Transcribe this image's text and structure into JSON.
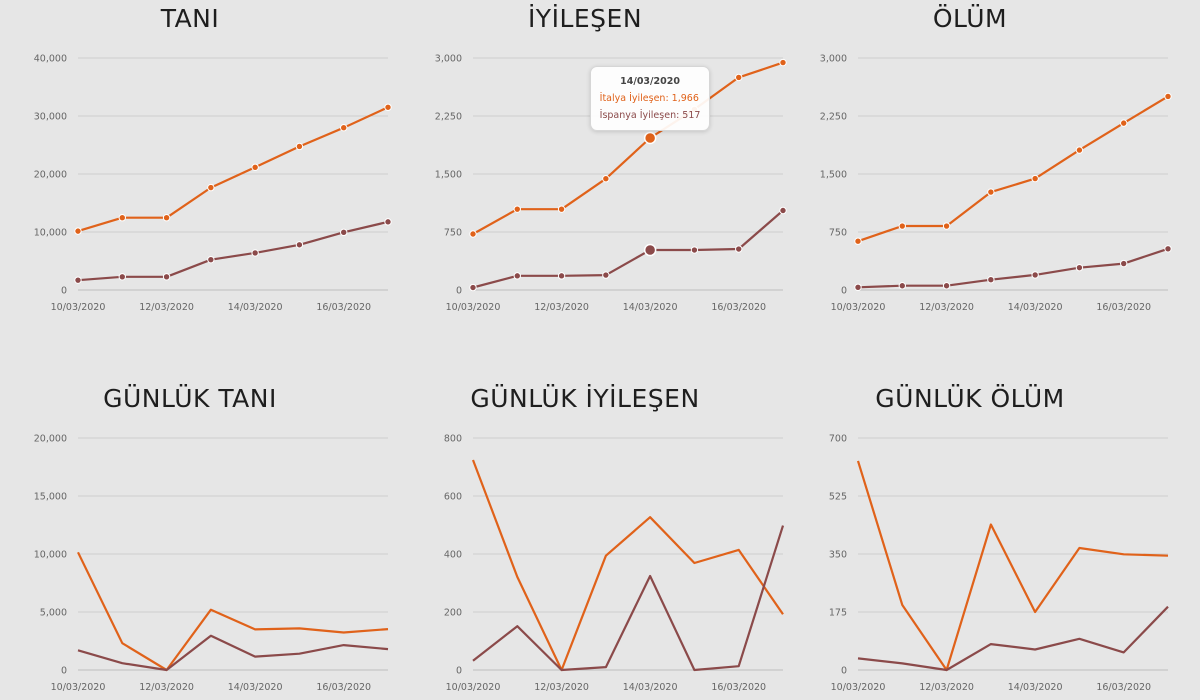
{
  "colors": {
    "italy": "#e0621a",
    "spain": "#8b4a4a"
  },
  "chart_data": [
    {
      "type": "line",
      "title": "TANI",
      "markers": true,
      "categories": [
        "10/03/2020",
        "11/03/2020",
        "12/03/2020",
        "13/03/2020",
        "14/03/2020",
        "15/03/2020",
        "16/03/2020",
        "17/03/2020"
      ],
      "x_tick_labels": [
        "10/03/2020",
        "12/03/2020",
        "14/03/2020",
        "16/03/2020"
      ],
      "ylim": [
        0,
        40000
      ],
      "y_ticks": [
        {
          "v": 0,
          "label": "0"
        },
        {
          "v": 10000,
          "label": "10,000"
        },
        {
          "v": 20000,
          "label": "20,000"
        },
        {
          "v": 30000,
          "label": "30,000"
        },
        {
          "v": 40000,
          "label": "40,000"
        }
      ],
      "series": [
        {
          "key": "italy",
          "values": [
            10149,
            12462,
            12462,
            17660,
            21157,
            24747,
            27980,
            31506
          ]
        },
        {
          "key": "spain",
          "values": [
            1695,
            2277,
            2277,
            5232,
            6391,
            7798,
            9942,
            11748
          ]
        }
      ]
    },
    {
      "type": "line",
      "title": "İYİLEŞEN",
      "markers": true,
      "categories": [
        "10/03/2020",
        "11/03/2020",
        "12/03/2020",
        "13/03/2020",
        "14/03/2020",
        "15/03/2020",
        "16/03/2020",
        "17/03/2020"
      ],
      "x_tick_labels": [
        "10/03/2020",
        "12/03/2020",
        "14/03/2020",
        "16/03/2020"
      ],
      "ylim": [
        0,
        3000
      ],
      "y_ticks": [
        {
          "v": 0,
          "label": "0"
        },
        {
          "v": 750,
          "label": "750"
        },
        {
          "v": 1500,
          "label": "1,500"
        },
        {
          "v": 2250,
          "label": "2,250"
        },
        {
          "v": 3000,
          "label": "3,000"
        }
      ],
      "series": [
        {
          "key": "italy",
          "values": [
            724,
            1045,
            1045,
            1439,
            1966,
            2335,
            2749,
            2941
          ]
        },
        {
          "key": "spain",
          "values": [
            32,
            183,
            183,
            193,
            517,
            517,
            530,
            1028
          ]
        }
      ],
      "tooltip": {
        "index": 4,
        "date": "14/03/2020",
        "lines": [
          {
            "key": "italy",
            "text": "İtalya İyileşen: 1,966"
          },
          {
            "key": "spain",
            "text": "İspanya İyileşen: 517"
          }
        ]
      }
    },
    {
      "type": "line",
      "title": "ÖLÜM",
      "markers": true,
      "categories": [
        "10/03/2020",
        "11/03/2020",
        "12/03/2020",
        "13/03/2020",
        "14/03/2020",
        "15/03/2020",
        "16/03/2020",
        "17/03/2020"
      ],
      "x_tick_labels": [
        "10/03/2020",
        "12/03/2020",
        "14/03/2020",
        "16/03/2020"
      ],
      "ylim": [
        0,
        3000
      ],
      "y_ticks": [
        {
          "v": 0,
          "label": "0"
        },
        {
          "v": 750,
          "label": "750"
        },
        {
          "v": 1500,
          "label": "1,500"
        },
        {
          "v": 2250,
          "label": "2,250"
        },
        {
          "v": 3000,
          "label": "3,000"
        }
      ],
      "series": [
        {
          "key": "italy",
          "values": [
            631,
            827,
            827,
            1266,
            1441,
            1809,
            2158,
            2503
          ]
        },
        {
          "key": "spain",
          "values": [
            35,
            55,
            55,
            133,
            195,
            289,
            342,
            533
          ]
        }
      ]
    },
    {
      "type": "line",
      "title": "GÜNLÜK TANI",
      "markers": false,
      "categories": [
        "10/03/2020",
        "11/03/2020",
        "12/03/2020",
        "13/03/2020",
        "14/03/2020",
        "15/03/2020",
        "16/03/2020",
        "17/03/2020"
      ],
      "x_tick_labels": [
        "10/03/2020",
        "12/03/2020",
        "14/03/2020",
        "16/03/2020"
      ],
      "ylim": [
        0,
        20000
      ],
      "y_ticks": [
        {
          "v": 0,
          "label": "0"
        },
        {
          "v": 5000,
          "label": "5,000"
        },
        {
          "v": 10000,
          "label": "10,000"
        },
        {
          "v": 15000,
          "label": "15,000"
        },
        {
          "v": 20000,
          "label": "20,000"
        }
      ],
      "series": [
        {
          "key": "italy",
          "values": [
            10149,
            2313,
            0,
            5198,
            3497,
            3590,
            3233,
            3526
          ]
        },
        {
          "key": "spain",
          "values": [
            1695,
            582,
            0,
            2955,
            1159,
            1407,
            2144,
            1806
          ]
        }
      ]
    },
    {
      "type": "line",
      "title": "GÜNLÜK İYİLEŞEN",
      "markers": false,
      "categories": [
        "10/03/2020",
        "11/03/2020",
        "12/03/2020",
        "13/03/2020",
        "14/03/2020",
        "15/03/2020",
        "16/03/2020",
        "17/03/2020"
      ],
      "x_tick_labels": [
        "10/03/2020",
        "12/03/2020",
        "14/03/2020",
        "16/03/2020"
      ],
      "ylim": [
        0,
        800
      ],
      "y_ticks": [
        {
          "v": 0,
          "label": "0"
        },
        {
          "v": 200,
          "label": "200"
        },
        {
          "v": 400,
          "label": "400"
        },
        {
          "v": 600,
          "label": "600"
        },
        {
          "v": 800,
          "label": "800"
        }
      ],
      "series": [
        {
          "key": "italy",
          "values": [
            724,
            321,
            0,
            394,
            527,
            369,
            414,
            192
          ]
        },
        {
          "key": "spain",
          "values": [
            32,
            151,
            0,
            10,
            324,
            0,
            13,
            498
          ]
        }
      ]
    },
    {
      "type": "line",
      "title": "GÜNLÜK ÖLÜM",
      "markers": false,
      "categories": [
        "10/03/2020",
        "11/03/2020",
        "12/03/2020",
        "13/03/2020",
        "14/03/2020",
        "15/03/2020",
        "16/03/2020",
        "17/03/2020"
      ],
      "x_tick_labels": [
        "10/03/2020",
        "12/03/2020",
        "14/03/2020",
        "16/03/2020"
      ],
      "ylim": [
        0,
        700
      ],
      "y_ticks": [
        {
          "v": 0,
          "label": "0"
        },
        {
          "v": 175,
          "label": "175"
        },
        {
          "v": 350,
          "label": "350"
        },
        {
          "v": 525,
          "label": "525"
        },
        {
          "v": 700,
          "label": "700"
        }
      ],
      "series": [
        {
          "key": "italy",
          "values": [
            631,
            196,
            0,
            439,
            175,
            368,
            349,
            345
          ]
        },
        {
          "key": "spain",
          "values": [
            35,
            20,
            0,
            78,
            62,
            94,
            53,
            191
          ]
        }
      ]
    }
  ]
}
